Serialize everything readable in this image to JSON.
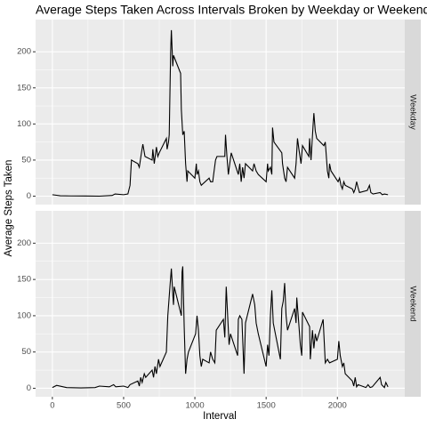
{
  "chart_data": {
    "type": "line",
    "title": "Average Steps Taken Across Intervals Broken by Weekday or Weekend",
    "xlabel": "Interval",
    "ylabel": "Average Steps Taken",
    "xlim": [
      -117.75,
      2472.75
    ],
    "xticks": [
      0,
      500,
      1000,
      1500,
      2000
    ],
    "ylim": [
      -11.7,
      244.6
    ],
    "yticks": [
      0,
      50,
      100,
      150,
      200
    ],
    "grid": true,
    "series": [
      {
        "name": "Weekday",
        "color": "#000000",
        "x": [
          0,
          55,
          130,
          230,
          330,
          420,
          440,
          500,
          530,
          545,
          555,
          600,
          610,
          625,
          635,
          650,
          700,
          705,
          715,
          730,
          740,
          750,
          800,
          805,
          815,
          820,
          830,
          835,
          845,
          850,
          900,
          905,
          915,
          925,
          935,
          945,
          950,
          1000,
          1010,
          1015,
          1025,
          1035,
          1045,
          1100,
          1110,
          1125,
          1135,
          1145,
          1155,
          1200,
          1210,
          1215,
          1225,
          1235,
          1245,
          1255,
          1305,
          1315,
          1325,
          1335,
          1345,
          1355,
          1405,
          1415,
          1430,
          1445,
          1500,
          1510,
          1515,
          1530,
          1540,
          1545,
          1555,
          1610,
          1615,
          1630,
          1640,
          1650,
          1700,
          1710,
          1720,
          1730,
          1745,
          1755,
          1800,
          1805,
          1815,
          1830,
          1835,
          1845,
          1855,
          1905,
          1915,
          1930,
          1940,
          1945,
          1955,
          2005,
          2015,
          2025,
          2035,
          2045,
          2055,
          2105,
          2115,
          2125,
          2135,
          2145,
          2155,
          2210,
          2225,
          2235,
          2250,
          2300,
          2315,
          2330,
          2355
        ],
        "values": [
          2,
          0.5,
          0.3,
          0.2,
          0,
          1,
          3,
          2,
          3,
          15,
          50,
          45,
          40,
          60,
          72,
          55,
          50,
          65,
          45,
          68,
          55,
          60,
          80,
          65,
          75,
          85,
          200,
          230,
          180,
          195,
          170,
          120,
          85,
          90,
          45,
          20,
          35,
          25,
          45,
          30,
          35,
          20,
          15,
          25,
          20,
          20,
          35,
          50,
          55,
          55,
          55,
          85,
          55,
          30,
          45,
          60,
          30,
          45,
          20,
          40,
          25,
          45,
          35,
          45,
          35,
          30,
          20,
          45,
          35,
          40,
          30,
          95,
          75,
          60,
          45,
          25,
          20,
          40,
          25,
          45,
          80,
          65,
          45,
          70,
          55,
          80,
          50,
          100,
          115,
          90,
          80,
          70,
          75,
          35,
          25,
          45,
          35,
          20,
          25,
          15,
          10,
          20,
          15,
          10,
          5,
          10,
          20,
          12,
          5,
          8,
          15,
          5,
          3,
          5,
          2,
          3,
          2
        ]
      },
      {
        "name": "Weekend",
        "color": "#000000",
        "x": [
          0,
          30,
          100,
          200,
          300,
          330,
          400,
          430,
          445,
          500,
          530,
          545,
          600,
          610,
          620,
          630,
          645,
          655,
          700,
          710,
          720,
          730,
          745,
          755,
          800,
          810,
          825,
          835,
          845,
          850,
          855,
          905,
          910,
          915,
          925,
          935,
          945,
          955,
          1005,
          1015,
          1025,
          1035,
          1045,
          1055,
          1100,
          1110,
          1125,
          1140,
          1150,
          1200,
          1210,
          1220,
          1230,
          1240,
          1250,
          1300,
          1305,
          1315,
          1330,
          1345,
          1355,
          1405,
          1420,
          1430,
          1445,
          1500,
          1510,
          1520,
          1530,
          1540,
          1550,
          1600,
          1610,
          1620,
          1630,
          1640,
          1650,
          1700,
          1710,
          1715,
          1725,
          1740,
          1750,
          1755,
          1805,
          1810,
          1825,
          1835,
          1845,
          1855,
          1900,
          1915,
          1930,
          1945,
          2000,
          2010,
          2020,
          2035,
          2045,
          2055,
          2105,
          2115,
          2125,
          2135,
          2145,
          2200,
          2215,
          2230,
          2245,
          2300,
          2310,
          2330,
          2340,
          2355
        ],
        "values": [
          1,
          4,
          1,
          0.5,
          1,
          3,
          2,
          5,
          2,
          3,
          1,
          5,
          10,
          3,
          15,
          8,
          20,
          15,
          25,
          15,
          30,
          20,
          40,
          30,
          50,
          100,
          140,
          165,
          130,
          115,
          140,
          100,
          160,
          168,
          85,
          20,
          40,
          50,
          75,
          100,
          80,
          45,
          30,
          40,
          35,
          50,
          40,
          35,
          80,
          95,
          70,
          140,
          100,
          60,
          75,
          45,
          95,
          100,
          95,
          20,
          90,
          130,
          115,
          90,
          75,
          30,
          60,
          45,
          100,
          135,
          90,
          40,
          110,
          120,
          145,
          100,
          80,
          110,
          90,
          125,
          100,
          60,
          45,
          105,
          85,
          40,
          80,
          55,
          75,
          65,
          95,
          35,
          40,
          35,
          40,
          65,
          45,
          30,
          35,
          20,
          10,
          3,
          15,
          2,
          5,
          1,
          5,
          1,
          2,
          15,
          5,
          1,
          8,
          2
        ]
      }
    ]
  }
}
